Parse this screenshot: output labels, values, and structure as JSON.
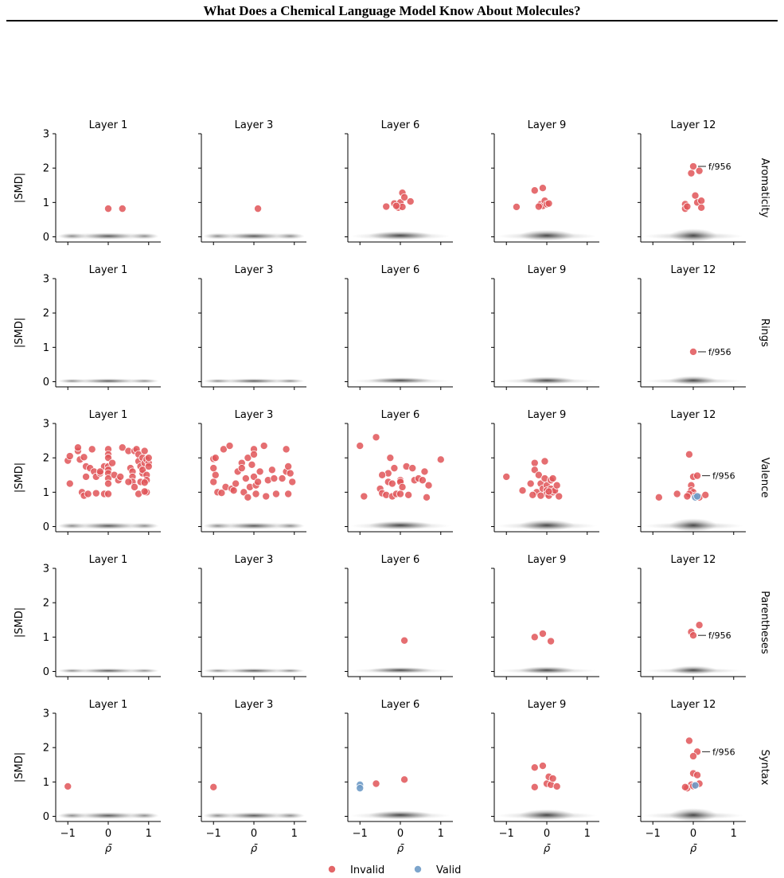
{
  "header": {
    "title": "What Does a Chemical Language Model Know About Molecules?"
  },
  "chart_data": {
    "type": "scatter",
    "layers": [
      "Layer 1",
      "Layer 3",
      "Layer 6",
      "Layer 9",
      "Layer 12"
    ],
    "rows": [
      "Aromaticity",
      "Rings",
      "Valence",
      "Parentheses",
      "Syntax"
    ],
    "xlabel": "ρ̄",
    "ylabel": "|SMD|",
    "xticks": [
      -1,
      0,
      1
    ],
    "xtick_labels": [
      "−1",
      "0",
      "1"
    ],
    "yticks": [
      0,
      1,
      2,
      3
    ],
    "xlim": [
      -1.3,
      1.3
    ],
    "ylim": [
      -0.15,
      3
    ],
    "annotation": "f/956",
    "legend": {
      "position": "bottom-center",
      "entries": [
        {
          "label": "Invalid",
          "color": "#e05558"
        },
        {
          "label": "Valid",
          "color": "#6f9bc7"
        }
      ]
    },
    "panels": [
      [
        {
          "invalid": [
            [
              0,
              0.82
            ],
            [
              0.35,
              0.82
            ]
          ],
          "valid": []
        },
        {
          "invalid": [
            [
              0.1,
              0.82
            ]
          ],
          "valid": []
        },
        {
          "invalid": [
            [
              -0.35,
              0.88
            ],
            [
              -0.15,
              0.97
            ],
            [
              -0.05,
              0.85
            ],
            [
              0.0,
              1.0
            ],
            [
              0.05,
              0.87
            ],
            [
              0.05,
              1.28
            ],
            [
              0.1,
              1.15
            ],
            [
              0.25,
              1.03
            ],
            [
              -0.1,
              0.9
            ]
          ],
          "valid": []
        },
        {
          "invalid": [
            [
              -0.75,
              0.87
            ],
            [
              -0.3,
              1.35
            ],
            [
              -0.1,
              1.42
            ],
            [
              -0.15,
              0.95
            ],
            [
              -0.1,
              0.9
            ],
            [
              -0.05,
              1.05
            ],
            [
              0.0,
              0.95
            ],
            [
              0.05,
              0.97
            ],
            [
              -0.2,
              0.88
            ]
          ],
          "valid": []
        },
        {
          "invalid": [
            [
              0.0,
              2.05
            ],
            [
              0.15,
              1.92
            ],
            [
              -0.05,
              1.85
            ],
            [
              0.05,
              1.2
            ],
            [
              -0.2,
              0.95
            ],
            [
              -0.2,
              0.82
            ],
            [
              0.1,
              1.0
            ],
            [
              0.2,
              1.05
            ],
            [
              0.2,
              0.85
            ],
            [
              -0.15,
              0.88
            ]
          ],
          "valid": [],
          "annot": [
            0.0,
            2.05
          ]
        }
      ],
      [
        {
          "invalid": [],
          "valid": []
        },
        {
          "invalid": [],
          "valid": []
        },
        {
          "invalid": [],
          "valid": []
        },
        {
          "invalid": [],
          "valid": []
        },
        {
          "invalid": [
            [
              0.0,
              0.87
            ]
          ],
          "valid": [],
          "annot": [
            0.0,
            0.87
          ]
        }
      ],
      [
        {
          "invalid": [
            [
              -1.0,
              1.92
            ],
            [
              -0.95,
              2.05
            ],
            [
              -0.95,
              1.25
            ],
            [
              -0.75,
              2.2
            ],
            [
              -0.75,
              2.3
            ],
            [
              -0.7,
              1.95
            ],
            [
              -0.6,
              2.02
            ],
            [
              -0.55,
              1.75
            ],
            [
              -0.55,
              1.45
            ],
            [
              -0.45,
              1.7
            ],
            [
              -0.4,
              2.25
            ],
            [
              -0.35,
              1.6
            ],
            [
              -0.3,
              1.45
            ],
            [
              -0.2,
              1.55
            ],
            [
              -0.1,
              1.75
            ],
            [
              0,
              2.25
            ],
            [
              0,
              2.1
            ],
            [
              0,
              2.0
            ],
            [
              0,
              1.75
            ],
            [
              0,
              1.65
            ],
            [
              0,
              1.55
            ],
            [
              0,
              1.4
            ],
            [
              0,
              1.25
            ],
            [
              0.1,
              1.85
            ],
            [
              0.15,
              1.5
            ],
            [
              0.25,
              1.35
            ],
            [
              0.3,
              1.45
            ],
            [
              0.35,
              2.3
            ],
            [
              0.5,
              2.2
            ],
            [
              0.55,
              1.7
            ],
            [
              0.6,
              1.6
            ],
            [
              0.6,
              1.45
            ],
            [
              0.6,
              1.3
            ],
            [
              0.65,
              1.15
            ],
            [
              0.65,
              2.2
            ],
            [
              0.7,
              2.25
            ],
            [
              0.75,
              2.1
            ],
            [
              0.75,
              1.9
            ],
            [
              0.8,
              1.75
            ],
            [
              0.8,
              1.3
            ],
            [
              0.85,
              1.55
            ],
            [
              0.85,
              1.65
            ],
            [
              0.85,
              2.0
            ],
            [
              0.9,
              2.2
            ],
            [
              0.9,
              1.85
            ],
            [
              0.95,
              1.95
            ],
            [
              0.95,
              1.5
            ],
            [
              0.95,
              1.35
            ],
            [
              0.95,
              1.0
            ],
            [
              1.0,
              1.85
            ],
            [
              1.0,
              1.75
            ],
            [
              1.0,
              2.0
            ],
            [
              -0.65,
              1.0
            ],
            [
              -0.6,
              0.9
            ],
            [
              -0.5,
              0.95
            ],
            [
              -0.3,
              0.97
            ],
            [
              -0.1,
              0.95
            ],
            [
              0,
              0.95
            ],
            [
              0.75,
              0.95
            ],
            [
              0.9,
              1.02
            ],
            [
              -0.2,
              1.6
            ],
            [
              0.5,
              1.3
            ],
            [
              0.9,
              1.28
            ]
          ],
          "valid": []
        },
        {
          "invalid": [
            [
              -1.0,
              1.97
            ],
            [
              -1.0,
              1.3
            ],
            [
              -0.95,
              2.0
            ],
            [
              -0.95,
              1.5
            ],
            [
              -0.9,
              1.0
            ],
            [
              -0.75,
              2.25
            ],
            [
              -0.7,
              1.15
            ],
            [
              -0.6,
              2.35
            ],
            [
              -0.55,
              1.1
            ],
            [
              -0.5,
              1.05
            ],
            [
              -0.45,
              1.25
            ],
            [
              -0.4,
              1.6
            ],
            [
              -0.3,
              1.85
            ],
            [
              -0.3,
              1.7
            ],
            [
              -0.25,
              1.0
            ],
            [
              -0.2,
              1.4
            ],
            [
              -0.15,
              2.0
            ],
            [
              -0.1,
              1.15
            ],
            [
              -0.05,
              1.8
            ],
            [
              0,
              2.25
            ],
            [
              0,
              2.1
            ],
            [
              0,
              1.45
            ],
            [
              0.05,
              1.2
            ],
            [
              0.05,
              0.95
            ],
            [
              0.1,
              1.3
            ],
            [
              0.15,
              1.6
            ],
            [
              0.25,
              2.35
            ],
            [
              0.3,
              0.88
            ],
            [
              0.35,
              1.35
            ],
            [
              0.45,
              1.65
            ],
            [
              0.5,
              1.4
            ],
            [
              0.55,
              0.95
            ],
            [
              0.7,
              1.4
            ],
            [
              0.8,
              2.25
            ],
            [
              0.8,
              1.6
            ],
            [
              0.85,
              1.75
            ],
            [
              0.85,
              0.95
            ],
            [
              0.9,
              1.55
            ],
            [
              0.95,
              1.3
            ],
            [
              -0.15,
              0.85
            ],
            [
              -0.8,
              0.98
            ],
            [
              -1.0,
              1.7
            ]
          ],
          "valid": []
        },
        {
          "invalid": [
            [
              -1.0,
              2.35
            ],
            [
              -0.9,
              0.88
            ],
            [
              -0.6,
              2.6
            ],
            [
              -0.5,
              1.1
            ],
            [
              -0.45,
              0.97
            ],
            [
              -0.35,
              0.92
            ],
            [
              -0.3,
              1.3
            ],
            [
              -0.3,
              1.55
            ],
            [
              -0.25,
              2.0
            ],
            [
              -0.2,
              1.25
            ],
            [
              -0.2,
              0.88
            ],
            [
              -0.15,
              1.7
            ],
            [
              -0.1,
              0.95
            ],
            [
              0,
              1.35
            ],
            [
              0,
              1.3
            ],
            [
              0,
              0.95
            ],
            [
              0.05,
              1.15
            ],
            [
              0.15,
              1.75
            ],
            [
              0.3,
              1.7
            ],
            [
              0.35,
              1.35
            ],
            [
              0.45,
              1.4
            ],
            [
              0.55,
              1.35
            ],
            [
              0.6,
              1.6
            ],
            [
              0.7,
              1.2
            ],
            [
              0.65,
              0.85
            ],
            [
              1.0,
              1.95
            ],
            [
              -0.45,
              1.5
            ],
            [
              0.2,
              0.92
            ]
          ],
          "valid": []
        },
        {
          "invalid": [
            [
              -1.0,
              1.45
            ],
            [
              -0.6,
              1.05
            ],
            [
              -0.4,
              1.25
            ],
            [
              -0.3,
              1.85
            ],
            [
              -0.3,
              1.65
            ],
            [
              -0.25,
              1.0
            ],
            [
              -0.2,
              1.5
            ],
            [
              -0.15,
              1.25
            ],
            [
              -0.1,
              1.1
            ],
            [
              -0.05,
              1.9
            ],
            [
              -0.05,
              1.4
            ],
            [
              0,
              1.2
            ],
            [
              0,
              1.05
            ],
            [
              0,
              0.95
            ],
            [
              0.05,
              0.9
            ],
            [
              0.1,
              1.1
            ],
            [
              0.1,
              1.35
            ],
            [
              0.15,
              1.0
            ],
            [
              0.2,
              1.05
            ],
            [
              0.25,
              1.2
            ],
            [
              0.3,
              0.88
            ],
            [
              -0.35,
              0.92
            ],
            [
              -0.15,
              0.9
            ],
            [
              0.05,
              1.02
            ],
            [
              0.15,
              1.4
            ]
          ],
          "valid": []
        },
        {
          "invalid": [
            [
              -0.85,
              0.85
            ],
            [
              -0.1,
              2.1
            ],
            [
              0.0,
              1.45
            ],
            [
              0.1,
              1.48
            ],
            [
              -0.05,
              1.2
            ],
            [
              -0.05,
              1.05
            ],
            [
              0,
              1.0
            ],
            [
              -0.1,
              0.95
            ],
            [
              0.05,
              0.9
            ],
            [
              -0.15,
              0.88
            ],
            [
              0.15,
              0.85
            ],
            [
              0.3,
              0.92
            ],
            [
              -0.4,
              0.95
            ]
          ],
          "valid": [
            [
              0.05,
              0.85
            ],
            [
              0.1,
              0.88
            ]
          ],
          "annot": [
            0.1,
            1.48
          ]
        }
      ],
      [
        {
          "invalid": [],
          "valid": []
        },
        {
          "invalid": [],
          "valid": []
        },
        {
          "invalid": [
            [
              0.1,
              0.9
            ]
          ],
          "valid": []
        },
        {
          "invalid": [
            [
              -0.3,
              1.0
            ],
            [
              -0.1,
              1.1
            ],
            [
              0.1,
              0.88
            ]
          ],
          "valid": []
        },
        {
          "invalid": [
            [
              -0.05,
              1.15
            ],
            [
              0.15,
              1.35
            ],
            [
              0.0,
              1.05
            ]
          ],
          "valid": [],
          "annot": [
            0.0,
            1.05
          ]
        }
      ],
      [
        {
          "invalid": [
            [
              -1.0,
              0.87
            ]
          ],
          "valid": []
        },
        {
          "invalid": [
            [
              -1.0,
              0.85
            ]
          ],
          "valid": []
        },
        {
          "invalid": [
            [
              -0.6,
              0.95
            ],
            [
              0.1,
              1.07
            ]
          ],
          "valid": [
            [
              -1.0,
              0.92
            ],
            [
              -1.0,
              0.82
            ]
          ]
        },
        {
          "invalid": [
            [
              -0.3,
              1.42
            ],
            [
              -0.1,
              1.47
            ],
            [
              0,
              0.95
            ],
            [
              0.05,
              1.15
            ],
            [
              0.1,
              0.92
            ],
            [
              0.15,
              1.1
            ],
            [
              0.25,
              0.87
            ],
            [
              -0.3,
              0.85
            ]
          ],
          "valid": []
        },
        {
          "invalid": [
            [
              -0.1,
              2.2
            ],
            [
              0.1,
              1.88
            ],
            [
              0,
              1.75
            ],
            [
              0,
              1.25
            ],
            [
              0.1,
              1.2
            ],
            [
              0.15,
              0.95
            ],
            [
              -0.05,
              0.92
            ],
            [
              -0.15,
              0.82
            ],
            [
              0,
              0.88
            ],
            [
              -0.2,
              0.85
            ]
          ],
          "valid": [
            [
              0.05,
              0.9
            ]
          ],
          "annot": [
            0.1,
            1.88
          ]
        }
      ]
    ]
  }
}
